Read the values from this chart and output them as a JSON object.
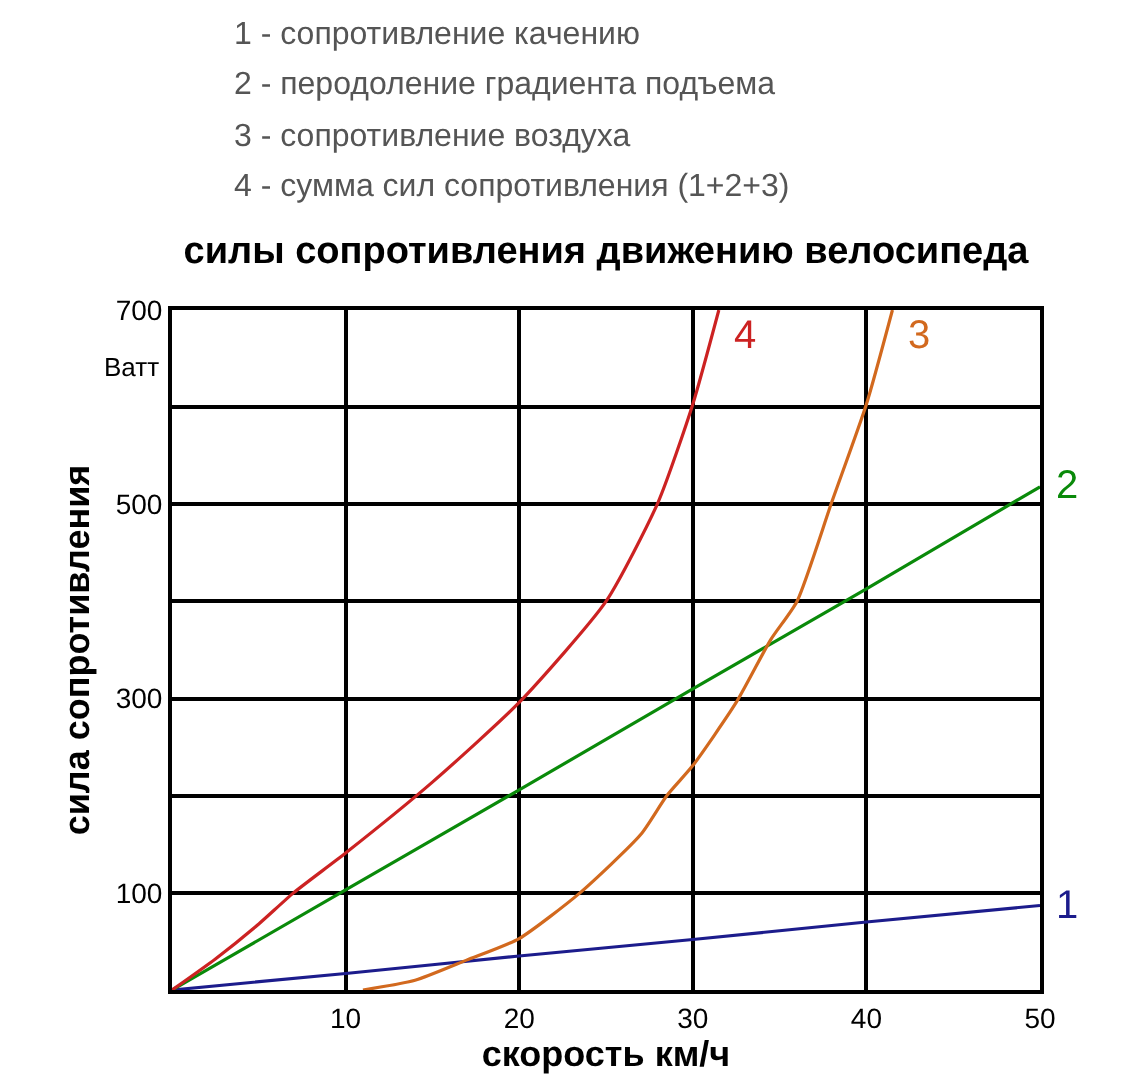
{
  "chart_data": {
    "type": "line",
    "title": "силы сопротивления движению велосипеда",
    "xlabel": "скорость км/ч",
    "ylabel": "сила сопротивления",
    "annotations": [
      "1 - сопротивление качению",
      "2 - перодоление градиента подъема",
      "3 - сопротивление воздуха",
      "4 - сумма сил сопротивления (1+2+3)",
      "Ватт"
    ],
    "xlim": [
      0,
      50
    ],
    "ylim": [
      0,
      700
    ],
    "xticks": [
      10,
      20,
      30,
      40,
      50
    ],
    "yticks": [
      100,
      {
        "value": 200,
        "label": null
      },
      300,
      {
        "value": 400,
        "label": null
      },
      500,
      {
        "value": 600,
        "label": null
      },
      700
    ],
    "grid": true,
    "legend": false,
    "marker": "none",
    "line_style": "solid",
    "series": [
      {
        "name": "1",
        "color": "#1c1c8c",
        "x": [
          0,
          10,
          20,
          30,
          40,
          50
        ],
        "values": [
          0,
          17,
          35,
          52,
          70,
          87
        ]
      },
      {
        "name": "2",
        "color": "#0a8a0a",
        "x": [
          0,
          10,
          20,
          30,
          40,
          50
        ],
        "values": [
          0,
          103,
          206,
          310,
          413,
          518
        ]
      },
      {
        "name": "3",
        "color": "#d2691e",
        "x": [
          11,
          14,
          17,
          20,
          23.5,
          27,
          28.5,
          30,
          32.5,
          34.5,
          36,
          38,
          40,
          41.5
        ],
        "values": [
          0,
          10,
          31,
          53,
          100,
          160,
          200,
          231,
          296,
          361,
          400,
          502,
          603,
          700
        ]
      },
      {
        "name": "4",
        "color": "#cc2222",
        "x": [
          0,
          2.5,
          5,
          7,
          10,
          15,
          20,
          25,
          28,
          30,
          31.5
        ],
        "values": [
          0,
          32,
          68,
          100,
          141,
          214,
          296,
          400,
          502,
          603,
          700
        ]
      }
    ]
  }
}
